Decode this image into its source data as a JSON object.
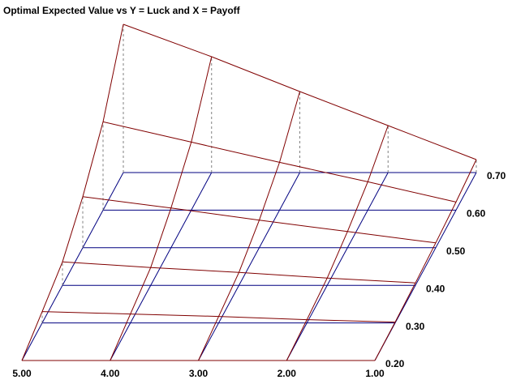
{
  "chart_data": {
    "type": "surface",
    "title": "Optimal Expected Value vs Y = Luck and X = Payoff",
    "x": [
      5,
      4,
      3,
      2,
      1
    ],
    "y": [
      0.2,
      0.3,
      0.4,
      0.5,
      0.6,
      0.7
    ],
    "xlim": [
      5,
      1
    ],
    "ylim": [
      0.2,
      0.7
    ],
    "zlim": [
      0,
      200
    ],
    "xticks": [
      {
        "value": 5,
        "label": "5.00"
      },
      {
        "value": 4,
        "label": "4.00"
      },
      {
        "value": 3,
        "label": "3.00"
      },
      {
        "value": 2,
        "label": "2.00"
      },
      {
        "value": 1,
        "label": "1.00"
      }
    ],
    "yticks": [
      {
        "value": 0.2,
        "label": "0.20"
      },
      {
        "value": 0.3,
        "label": "0.30"
      },
      {
        "value": 0.4,
        "label": "0.40"
      },
      {
        "value": 0.5,
        "label": "0.50"
      },
      {
        "value": 0.6,
        "label": "0.60"
      },
      {
        "value": 0.7,
        "label": "0.70"
      }
    ],
    "values": [
      [
        0,
        0,
        0,
        0,
        0
      ],
      [
        14,
        11,
        8,
        4,
        1
      ],
      [
        29,
        22,
        16,
        9,
        3
      ],
      [
        63,
        49,
        34,
        20,
        6
      ],
      [
        109,
        84,
        59,
        35,
        10
      ],
      [
        183,
        143,
        100,
        58,
        16
      ]
    ],
    "grid_color": "#000080",
    "surface_color": "#800000"
  }
}
